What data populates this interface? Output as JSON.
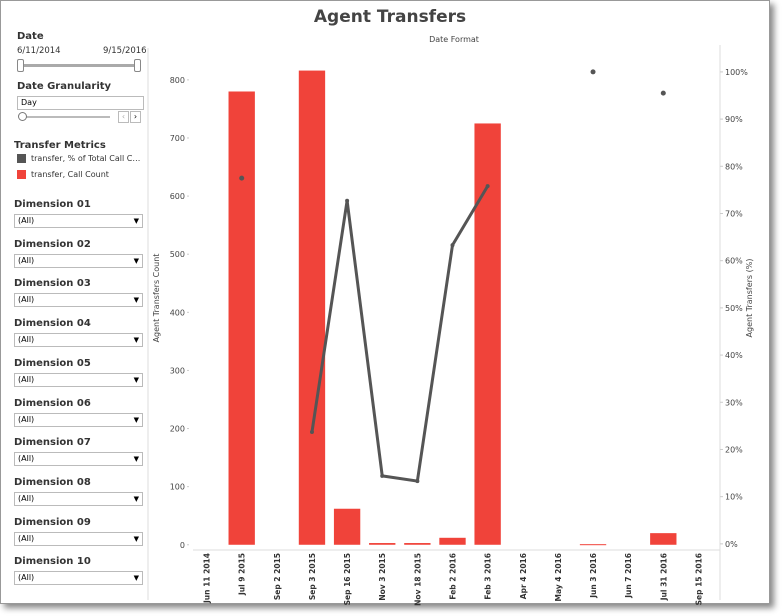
{
  "chart_data": {
    "type": "bar-line",
    "title": "Agent Transfers",
    "subtitle": "Date Format",
    "y_label": "Agent Transfers Count",
    "y2_label": "Agent Transfers (%)",
    "categories": [
      "Jun 11 2014",
      "Jul 9 2015",
      "Sep 2 2015",
      "Sep 3 2015",
      "Sep 16 2015",
      "Nov 3 2015",
      "Nov 18 2015",
      "Feb 2 2016",
      "Feb 3 2016",
      "Apr 4 2016",
      "May 4 2016",
      "Jun 3 2016",
      "Jun 7 2016",
      "Jul 31 2016",
      "Sep 15 2016"
    ],
    "series": [
      {
        "name": "transfer, % of Total Call Count",
        "color": "#555555",
        "axis": "y2",
        "kind": "line",
        "values": [
          null,
          77.5,
          null,
          23.7,
          72.7,
          14.4,
          13.3,
          63.3,
          75.8,
          null,
          null,
          100,
          null,
          95.5,
          null
        ]
      },
      {
        "name": "transfer, Call Count",
        "color": "#f0433a",
        "kind": "bar",
        "values": [
          null,
          780,
          null,
          816,
          62,
          3,
          3,
          12,
          725,
          null,
          null,
          1,
          null,
          20,
          null
        ]
      }
    ],
    "ylim": [
      -9,
      860
    ],
    "yticks": [
      0,
      100,
      200,
      300,
      400,
      500,
      600,
      700,
      800
    ],
    "y2lim": [
      -1.3,
      105.7
    ],
    "y2ticks": [
      {
        "value": 0,
        "label": "0%"
      },
      {
        "value": 10,
        "label": "10%"
      },
      {
        "value": 20,
        "label": "20%"
      },
      {
        "value": 30,
        "label": "30%"
      },
      {
        "value": 40,
        "label": "40%"
      },
      {
        "value": 50,
        "label": "50%"
      },
      {
        "value": 60,
        "label": "60%"
      },
      {
        "value": 70,
        "label": "70%"
      },
      {
        "value": 80,
        "label": "80%"
      },
      {
        "value": 90,
        "label": "90%"
      },
      {
        "value": 100,
        "label": "100%"
      }
    ],
    "grid": false
  },
  "sidebar": {
    "date": {
      "title": "Date",
      "start": "6/11/2014",
      "end": "9/15/2016"
    },
    "granularity": {
      "title": "Date Granularity",
      "value": "Day"
    },
    "legend_title": "Transfer Metrics",
    "dimensions": [
      {
        "label": "Dimension 01",
        "value": "(All)"
      },
      {
        "label": "Dimension 02",
        "value": "(All)"
      },
      {
        "label": "Dimension 03",
        "value": "(All)"
      },
      {
        "label": "Dimension 04",
        "value": "(All)"
      },
      {
        "label": "Dimension 05",
        "value": "(All)"
      },
      {
        "label": "Dimension 06",
        "value": "(All)"
      },
      {
        "label": "Dimension 07",
        "value": "(All)"
      },
      {
        "label": "Dimension 08",
        "value": "(All)"
      },
      {
        "label": "Dimension 09",
        "value": "(All)"
      },
      {
        "label": "Dimension 10",
        "value": "(All)"
      }
    ]
  }
}
